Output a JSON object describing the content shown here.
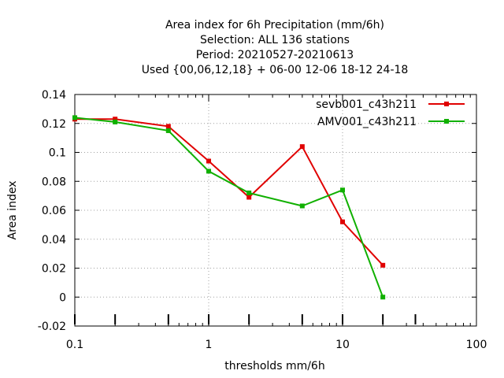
{
  "chart_data": {
    "type": "line",
    "title_lines": [
      "Area index  for 6h Precipitation (mm/6h)",
      "Selection: ALL    136 stations",
      "Period: 20210527-20210613",
      "Used {00,06,12,18} + 06-00 12-06 18-12 24-18"
    ],
    "xlabel": "thresholds mm/6h",
    "ylabel": "Area index",
    "x_scale": "log",
    "xlim": [
      0.1,
      100
    ],
    "ylim": [
      -0.02,
      0.14
    ],
    "x_ticks": [
      0.1,
      1,
      10,
      100
    ],
    "x_tick_labels": [
      "0.1",
      "1",
      "10",
      "100"
    ],
    "y_ticks": [
      -0.02,
      0,
      0.02,
      0.04,
      0.06,
      0.08,
      0.1,
      0.12,
      0.14
    ],
    "y_tick_labels": [
      "-0.02",
      "0",
      "0.02",
      "0.04",
      "0.06",
      "0.08",
      "0.1",
      "0.12",
      "0.14"
    ],
    "threshold_marks": [
      0.1,
      0.2,
      0.5,
      1,
      2,
      5,
      10,
      20,
      35
    ],
    "grid": true,
    "legend_position": "top-right",
    "series": [
      {
        "name": "sevb001_c43h211",
        "color": "#e00000",
        "x": [
          0.1,
          0.2,
          0.5,
          1,
          2,
          5,
          10,
          20
        ],
        "values": [
          0.123,
          0.123,
          0.118,
          0.094,
          0.069,
          0.104,
          0.052,
          0.022
        ]
      },
      {
        "name": "AMV001_c43h211",
        "color": "#10b000",
        "x": [
          0.1,
          0.2,
          0.5,
          1,
          2,
          5,
          10,
          20
        ],
        "values": [
          0.124,
          0.121,
          0.115,
          0.087,
          0.072,
          0.063,
          0.074,
          0.0
        ]
      }
    ]
  }
}
